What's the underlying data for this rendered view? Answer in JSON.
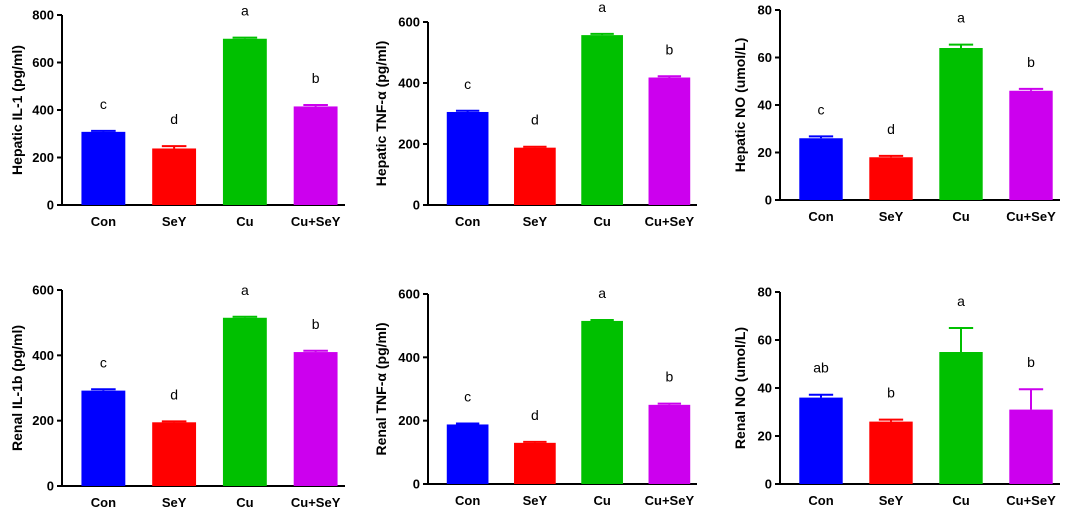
{
  "colors": {
    "Con": "#0000ff",
    "SeY": "#ff0000",
    "Cu": "#00c000",
    "Cu+SeY": "#cc00ee"
  },
  "chart_data": [
    {
      "type": "bar",
      "ylabel": "Hepatic IL-1 (pg/ml)",
      "categories": [
        "Con",
        "SeY",
        "Cu",
        "Cu+SeY"
      ],
      "values": [
        308,
        238,
        700,
        415
      ],
      "errors": [
        4,
        10,
        5,
        6
      ],
      "significance": [
        "c",
        "d",
        "a",
        "b"
      ],
      "ylim": [
        0,
        800
      ],
      "yticks": [
        0,
        200,
        400,
        600,
        800
      ]
    },
    {
      "type": "bar",
      "ylabel": "Hepatic TNF-α (pg/ml)",
      "categories": [
        "Con",
        "SeY",
        "Cu",
        "Cu+SeY"
      ],
      "values": [
        305,
        188,
        557,
        418
      ],
      "errors": [
        4,
        3,
        4,
        4
      ],
      "significance": [
        "c",
        "d",
        "a",
        "b"
      ],
      "ylim": [
        0,
        600
      ],
      "yticks": [
        0,
        200,
        400,
        600
      ]
    },
    {
      "type": "bar",
      "ylabel": "Hepatic NO (umol/L)",
      "categories": [
        "Con",
        "SeY",
        "Cu",
        "Cu+SeY"
      ],
      "values": [
        26,
        18,
        64,
        46
      ],
      "errors": [
        0.8,
        0.6,
        1.4,
        0.8
      ],
      "significance": [
        "c",
        "d",
        "a",
        "b"
      ],
      "ylim": [
        0,
        80
      ],
      "yticks": [
        0,
        20,
        40,
        60,
        80
      ]
    },
    {
      "type": "bar",
      "ylabel": "Renal IL-1b (pg/ml)",
      "categories": [
        "Con",
        "SeY",
        "Cu",
        "Cu+SeY"
      ],
      "values": [
        292,
        195,
        515,
        410
      ],
      "errors": [
        4,
        3,
        3,
        4
      ],
      "significance": [
        "c",
        "d",
        "a",
        "b"
      ],
      "ylim": [
        0,
        600
      ],
      "yticks": [
        0,
        200,
        400,
        600
      ]
    },
    {
      "type": "bar",
      "ylabel": "Renal TNF-α (pg/ml)",
      "categories": [
        "Con",
        "SeY",
        "Cu",
        "Cu+SeY"
      ],
      "values": [
        188,
        130,
        515,
        250
      ],
      "errors": [
        3,
        3,
        3,
        4
      ],
      "significance": [
        "c",
        "d",
        "a",
        "b"
      ],
      "ylim": [
        0,
        600
      ],
      "yticks": [
        0,
        200,
        400,
        600
      ]
    },
    {
      "type": "bar",
      "ylabel": "Renal NO (umol/L)",
      "categories": [
        "Con",
        "SeY",
        "Cu",
        "Cu+SeY"
      ],
      "values": [
        36,
        26,
        55,
        31
      ],
      "errors": [
        1.2,
        0.8,
        10,
        8.5
      ],
      "significance": [
        "ab",
        "b",
        "a",
        "b"
      ],
      "ylim": [
        0,
        80
      ],
      "yticks": [
        0,
        20,
        40,
        60,
        80
      ]
    }
  ]
}
